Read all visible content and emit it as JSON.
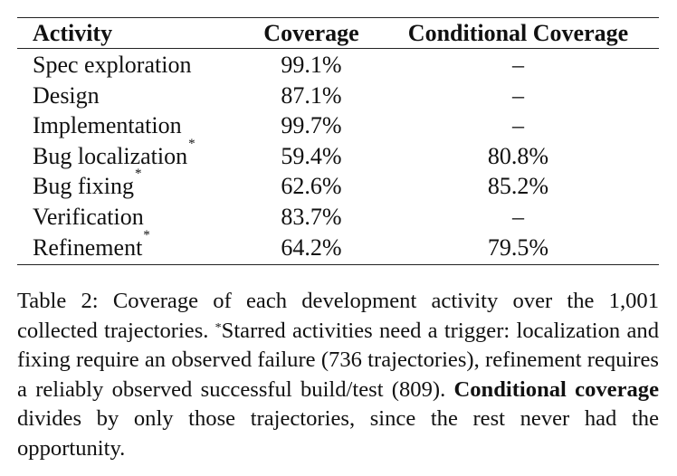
{
  "table": {
    "headers": {
      "activity": "Activity",
      "coverage": "Coverage",
      "conditional": "Conditional Coverage"
    },
    "star_symbol": "*",
    "rows": [
      {
        "activity": "Spec exploration",
        "starred": false,
        "coverage": "99.1%",
        "conditional": "–"
      },
      {
        "activity": "Design",
        "starred": false,
        "coverage": "87.1%",
        "conditional": "–"
      },
      {
        "activity": "Implementation",
        "starred": false,
        "coverage": "99.7%",
        "conditional": "–"
      },
      {
        "activity": "Bug localization",
        "starred": true,
        "coverage": "59.4%",
        "conditional": "80.8%"
      },
      {
        "activity": "Bug fixing",
        "starred": true,
        "coverage": "62.6%",
        "conditional": "85.2%"
      },
      {
        "activity": "Verification",
        "starred": false,
        "coverage": "83.7%",
        "conditional": "–"
      },
      {
        "activity": "Refinement",
        "starred": true,
        "coverage": "64.2%",
        "conditional": "79.5%"
      }
    ]
  },
  "caption": {
    "part1": "Table 2: Coverage of each development activity over the 1,001 collected trajectories. ",
    "star": "*",
    "part2": "Starred activities need a trig­ger: localization and fixing require an observed failure (736 trajectories), refinement requires a reliably observed success­ful build/test (809). ",
    "bold_term": "Conditional coverage",
    "part3": " divides by only those trajectories, since the rest never had the opportunity."
  }
}
